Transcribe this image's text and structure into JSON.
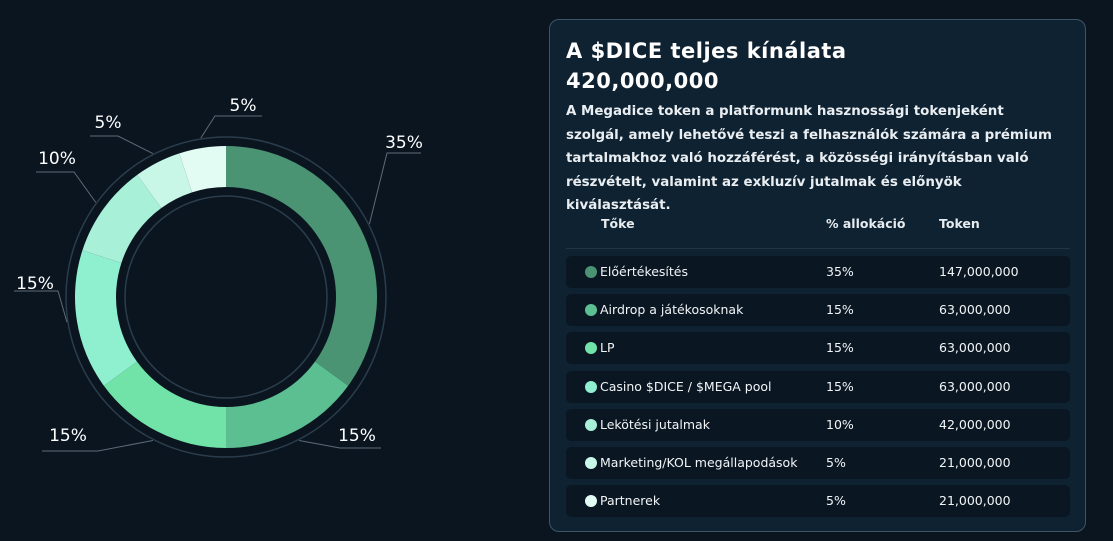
{
  "chart_data": {
    "type": "donut",
    "slices": [
      {
        "name": "Előértékesítés",
        "value": 35,
        "label": "35%",
        "color": "#4a9474"
      },
      {
        "name": "Airdrop a játékosoknak",
        "value": 15,
        "label": "15%",
        "color": "#5cbf92"
      },
      {
        "name": "LP",
        "value": 15,
        "label": "15%",
        "color": "#72e3a8"
      },
      {
        "name": "Casino $DICE / $MEGA pool",
        "value": 15,
        "label": "15%",
        "color": "#8ff0cf"
      },
      {
        "name": "Lekötési jutalmak",
        "value": 10,
        "label": "10%",
        "color": "#a8f0d8"
      },
      {
        "name": "Marketing/KOL megállapodások",
        "value": 5,
        "label": "5%",
        "color": "#c8f7e8"
      },
      {
        "name": "Partnerek",
        "value": 5,
        "label": "5%",
        "color": "#e2fbf3"
      }
    ]
  },
  "panel": {
    "title": "A $DICE teljes kínálata",
    "total": "420,000,000",
    "description": "A Megadice token a platformunk hasznossági tokenjeként szolgál, amely lehetővé teszi a felhasználók számára a prémium tartalmakhoz való hozzáférést, a közösségi irányításban való részvételt, valamint az exkluzív jutalmak és előnyök kiválasztását."
  },
  "table": {
    "headers": [
      "Tőke",
      "% allokáció",
      "Token"
    ],
    "rows": [
      {
        "name": "Előértékesítés",
        "pct": "35%",
        "tokens": "147,000,000",
        "color": "#4a9474"
      },
      {
        "name": "Airdrop a játékosoknak",
        "pct": "15%",
        "tokens": "63,000,000",
        "color": "#5cbf92"
      },
      {
        "name": "LP",
        "pct": "15%",
        "tokens": "63,000,000",
        "color": "#72e3a8"
      },
      {
        "name": "Casino $DICE / $MEGA pool",
        "pct": "15%",
        "tokens": "63,000,000",
        "color": "#8ff0cf"
      },
      {
        "name": "Lekötési jutalmak",
        "pct": "10%",
        "tokens": "42,000,000",
        "color": "#a8f0d8"
      },
      {
        "name": "Marketing/KOL megállapodások",
        "pct": "5%",
        "tokens": "21,000,000",
        "color": "#c8f7e8"
      },
      {
        "name": "Partnerek",
        "pct": "5%",
        "tokens": "21,000,000",
        "color": "#e2fbf3"
      }
    ]
  }
}
